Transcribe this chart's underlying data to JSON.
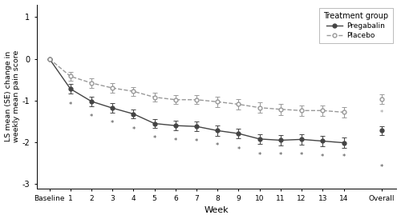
{
  "x_labels": [
    "Baseline",
    "1",
    "2",
    "3",
    "4",
    "5",
    "6",
    "7",
    "8",
    "9",
    "10",
    "11",
    "12",
    "13",
    "14",
    "Overall"
  ],
  "x_positions": [
    0,
    1,
    2,
    3,
    4,
    5,
    6,
    7,
    8,
    9,
    10,
    11,
    12,
    13,
    14,
    15.8
  ],
  "pregabalin_mean": [
    0.0,
    -0.72,
    -1.02,
    -1.18,
    -1.32,
    -1.55,
    -1.6,
    -1.62,
    -1.72,
    -1.79,
    -1.92,
    -1.95,
    -1.93,
    -1.97,
    -2.01,
    -1.72
  ],
  "pregabalin_se": [
    0.0,
    0.11,
    0.11,
    0.11,
    0.11,
    0.11,
    0.11,
    0.11,
    0.12,
    0.12,
    0.12,
    0.13,
    0.13,
    0.13,
    0.13,
    0.11
  ],
  "placebo_mean": [
    0.0,
    -0.42,
    -0.58,
    -0.7,
    -0.78,
    -0.92,
    -0.98,
    -0.98,
    -1.03,
    -1.09,
    -1.17,
    -1.21,
    -1.24,
    -1.24,
    -1.28,
    -0.97
  ],
  "placebo_se": [
    0.0,
    0.11,
    0.11,
    0.11,
    0.11,
    0.11,
    0.11,
    0.11,
    0.12,
    0.12,
    0.12,
    0.13,
    0.13,
    0.13,
    0.13,
    0.11
  ],
  "asterisk_x_preg": [
    1,
    2,
    3,
    4,
    5,
    6,
    7,
    8,
    9,
    10,
    11,
    12,
    13,
    14,
    15.8
  ],
  "asterisk_y_preg": [
    -1.02,
    -1.31,
    -1.47,
    -1.62,
    -1.83,
    -1.88,
    -1.9,
    -1.99,
    -2.1,
    -2.22,
    -2.22,
    -2.22,
    -2.27,
    -2.27,
    -2.52
  ],
  "asterisk_x_plac": [
    15.8
  ],
  "asterisk_y_plac": [
    -1.22
  ],
  "pregabalin_color": "#444444",
  "placebo_color": "#999999",
  "ylabel": "LS mean (SE) change in\nweekly mean pain score",
  "xlabel": "Week",
  "ylim": [
    -3.1,
    1.3
  ],
  "yticks": [
    -3,
    -2,
    -1,
    0,
    1
  ],
  "legend_title": "Treatment group",
  "legend_preg": "Pregabalin",
  "legend_plac": "Placebo"
}
